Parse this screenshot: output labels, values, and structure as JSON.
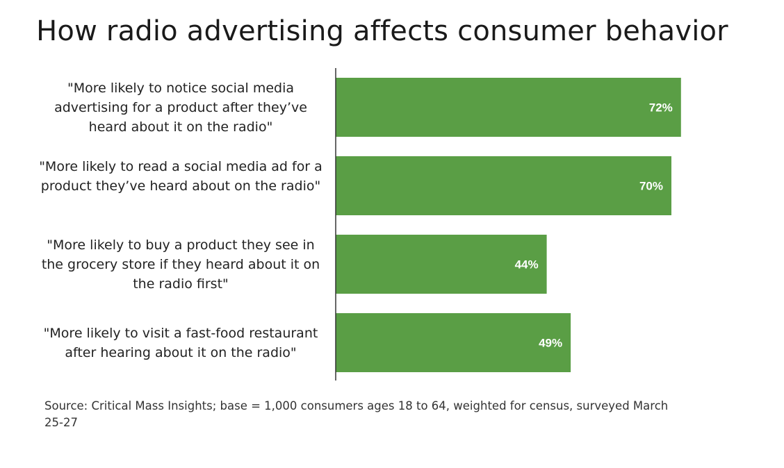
{
  "chart_data": {
    "type": "bar",
    "orientation": "horizontal",
    "title": "How radio advertising affects consumer behavior",
    "categories": [
      "\"More likely to notice social media advertising for a product after they’ve heard about it on the radio\"",
      "\"More likely to read a social media ad for a product they’ve heard about on the radio\"",
      "\"More likely to buy a product they see in the grocery store if they heard about it on the radio first\"",
      "\"More likely to visit a fast-food restaurant after hearing about it on the radio\""
    ],
    "values": [
      72,
      70,
      44,
      49
    ],
    "value_labels": [
      "72%",
      "70%",
      "44%",
      "49%"
    ],
    "xlim": [
      0,
      100
    ],
    "xlabel": "",
    "ylabel": "",
    "grid": false,
    "bar_color": "#5a9e45",
    "label_color": "#ffffff"
  },
  "source": "Source: Critical Mass Insights; base = 1,000 consumers ages 18 to 64, weighted for census, surveyed March 25-27"
}
